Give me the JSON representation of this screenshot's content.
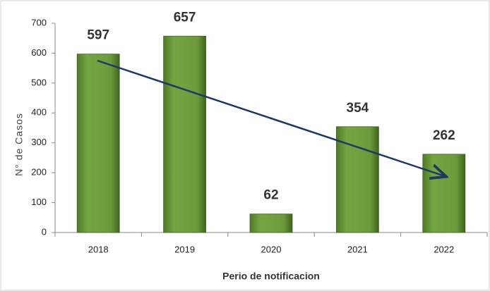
{
  "chart_data": {
    "type": "bar",
    "categories": [
      "2018",
      "2019",
      "2020",
      "2021",
      "2022"
    ],
    "values": [
      597,
      657,
      62,
      354,
      262
    ],
    "color": "#6b9a3b",
    "ylim": [
      0,
      700
    ],
    "yticks": [
      0,
      100,
      200,
      300,
      400,
      500,
      600,
      700
    ],
    "y_label": "N° de Casos",
    "x_label": "Perio de notificacion"
  }
}
